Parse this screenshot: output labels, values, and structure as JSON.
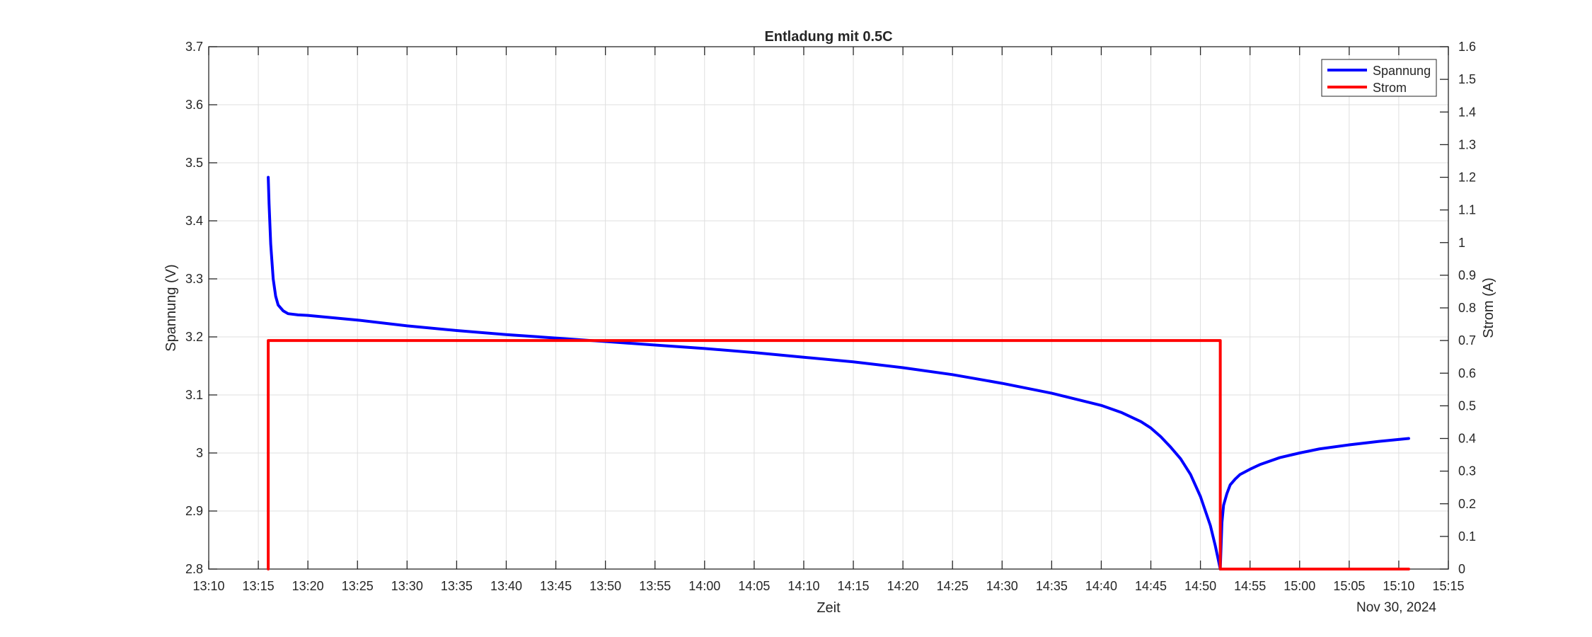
{
  "chart_data": {
    "type": "line",
    "title": "Entladung mit 0.5C",
    "xlabel": "Zeit",
    "date_label": "Nov 30, 2024",
    "ylabel_left": "Spannung (V)",
    "ylabel_right": "Strom (A)",
    "xlim": [
      "13:10",
      "15:15"
    ],
    "ylim_left": [
      2.8,
      3.7
    ],
    "ylim_right": [
      0,
      1.6
    ],
    "grid": true,
    "legend_position": "top-right",
    "x_ticks": [
      "13:10",
      "13:15",
      "13:20",
      "13:25",
      "13:30",
      "13:35",
      "13:40",
      "13:45",
      "13:50",
      "13:55",
      "14:00",
      "14:05",
      "14:10",
      "14:15",
      "14:20",
      "14:25",
      "14:30",
      "14:35",
      "14:40",
      "14:45",
      "14:50",
      "14:55",
      "15:00",
      "15:05",
      "15:10",
      "15:15"
    ],
    "y_ticks_left": [
      "2.8",
      "2.9",
      "3",
      "3.1",
      "3.2",
      "3.3",
      "3.4",
      "3.5",
      "3.6",
      "3.7"
    ],
    "y_ticks_right": [
      "0",
      "0.1",
      "0.2",
      "0.3",
      "0.4",
      "0.5",
      "0.6",
      "0.7",
      "0.8",
      "0.9",
      "1",
      "1.1",
      "1.2",
      "1.3",
      "1.4",
      "1.5",
      "1.6"
    ],
    "series": [
      {
        "name": "Spannung",
        "axis": "left",
        "color": "#0000FF",
        "x": [
          "13:16:00",
          "13:16:05",
          "13:16:15",
          "13:16:30",
          "13:16:45",
          "13:17:00",
          "13:17:30",
          "13:18:00",
          "13:19:00",
          "13:20:00",
          "13:25:00",
          "13:30:00",
          "13:35:00",
          "13:40:00",
          "13:45:00",
          "13:50:00",
          "13:55:00",
          "14:00:00",
          "14:05:00",
          "14:10:00",
          "14:15:00",
          "14:20:00",
          "14:25:00",
          "14:30:00",
          "14:35:00",
          "14:40:00",
          "14:42:00",
          "14:44:00",
          "14:45:00",
          "14:46:00",
          "14:47:00",
          "14:48:00",
          "14:49:00",
          "14:50:00",
          "14:51:00",
          "14:51:30",
          "14:52:00",
          "14:52:10",
          "14:52:20",
          "14:52:40",
          "14:53:00",
          "14:53:30",
          "14:54:00",
          "14:55:00",
          "14:56:00",
          "14:58:00",
          "15:00:00",
          "15:02:00",
          "15:05:00",
          "15:08:00",
          "15:11:00"
        ],
        "values": [
          3.475,
          3.43,
          3.36,
          3.3,
          3.27,
          3.255,
          3.245,
          3.24,
          3.238,
          3.237,
          3.229,
          3.219,
          3.211,
          3.204,
          3.198,
          3.192,
          3.186,
          3.18,
          3.173,
          3.165,
          3.157,
          3.147,
          3.135,
          3.12,
          3.103,
          3.082,
          3.07,
          3.054,
          3.043,
          3.028,
          3.01,
          2.99,
          2.963,
          2.925,
          2.875,
          2.84,
          2.8,
          2.88,
          2.91,
          2.93,
          2.945,
          2.955,
          2.963,
          2.972,
          2.98,
          2.992,
          3.0,
          3.007,
          3.014,
          3.02,
          3.025
        ]
      },
      {
        "name": "Strom",
        "axis": "right",
        "color": "#FF0000",
        "x": [
          "13:16:00",
          "13:16:00",
          "14:52:00",
          "14:52:00",
          "15:11:00"
        ],
        "values": [
          0,
          0.7,
          0.7,
          0,
          0
        ]
      }
    ]
  }
}
